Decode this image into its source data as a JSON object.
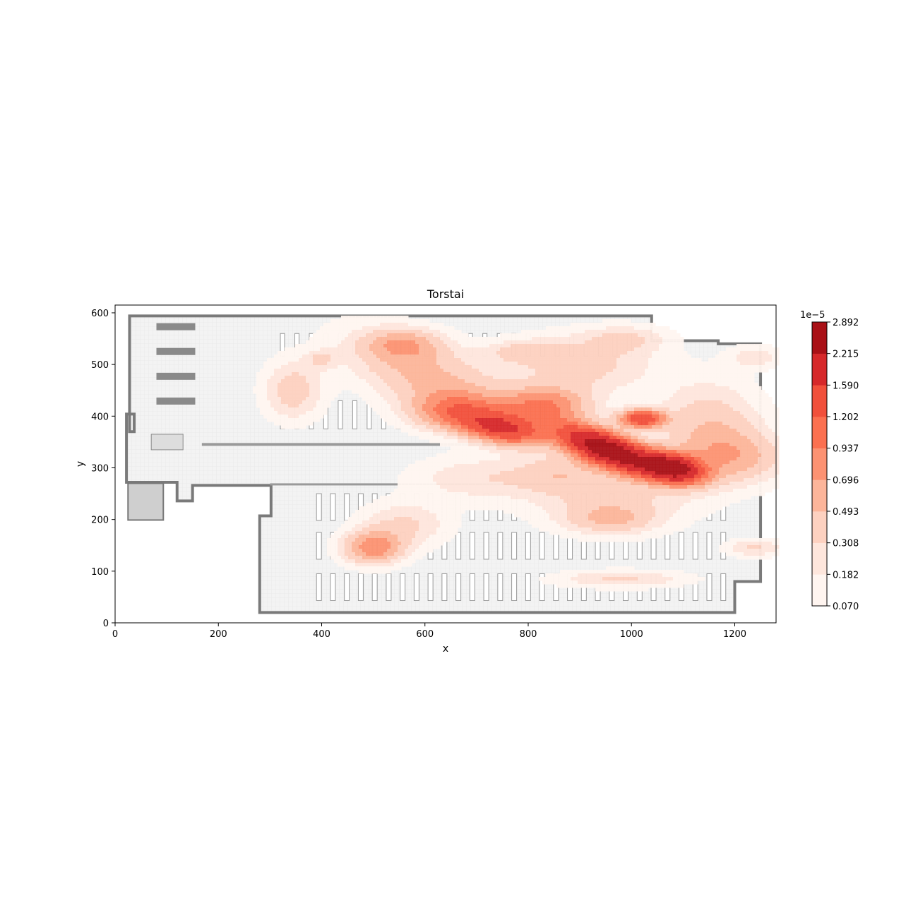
{
  "chart_data": {
    "type": "heatmap",
    "title": "Torstai",
    "xlabel": "x",
    "ylabel": "y",
    "xlim": [
      0,
      1280
    ],
    "ylim": [
      0,
      615
    ],
    "x_ticks": [
      0,
      200,
      400,
      600,
      800,
      1000,
      1200
    ],
    "y_ticks": [
      0,
      100,
      200,
      300,
      400,
      500,
      600
    ],
    "background": "grayscale store floor plan",
    "colormap": "Reds",
    "colorbar": {
      "exponent_label": "1e−5",
      "levels": [
        "0.070",
        "0.182",
        "0.308",
        "0.493",
        "0.696",
        "0.937",
        "1.202",
        "1.590",
        "2.215",
        "2.892"
      ],
      "colors": [
        "#fff5f0",
        "#fee6dc",
        "#fdd1c0",
        "#fcb59a",
        "#fc9272",
        "#fb7050",
        "#f1503b",
        "#d6282a",
        "#a91016"
      ]
    },
    "hotspots": [
      {
        "x": 955,
        "y": 335,
        "sx": 70,
        "sy": 22,
        "angle": -20,
        "w": 1.0
      },
      {
        "x": 1080,
        "y": 300,
        "sx": 40,
        "sy": 18,
        "angle": -10,
        "w": 0.85
      },
      {
        "x": 1020,
        "y": 395,
        "sx": 30,
        "sy": 12,
        "angle": 0,
        "w": 0.55
      },
      {
        "x": 750,
        "y": 375,
        "sx": 55,
        "sy": 20,
        "angle": -10,
        "w": 0.55
      },
      {
        "x": 660,
        "y": 410,
        "sx": 60,
        "sy": 25,
        "angle": 0,
        "w": 0.3
      },
      {
        "x": 830,
        "y": 420,
        "sx": 60,
        "sy": 25,
        "angle": 0,
        "w": 0.32
      },
      {
        "x": 600,
        "y": 480,
        "sx": 110,
        "sy": 45,
        "angle": -20,
        "w": 0.2
      },
      {
        "x": 560,
        "y": 540,
        "sx": 50,
        "sy": 20,
        "angle": 0,
        "w": 0.18
      },
      {
        "x": 500,
        "y": 145,
        "sx": 40,
        "sy": 22,
        "angle": 0,
        "w": 0.3
      },
      {
        "x": 560,
        "y": 190,
        "sx": 60,
        "sy": 30,
        "angle": 0,
        "w": 0.12
      },
      {
        "x": 345,
        "y": 450,
        "sx": 40,
        "sy": 40,
        "angle": 0,
        "w": 0.15
      },
      {
        "x": 400,
        "y": 510,
        "sx": 20,
        "sy": 12,
        "angle": 0,
        "w": 0.1
      },
      {
        "x": 900,
        "y": 500,
        "sx": 100,
        "sy": 40,
        "angle": 0,
        "w": 0.14
      },
      {
        "x": 1150,
        "y": 380,
        "sx": 70,
        "sy": 60,
        "angle": 0,
        "w": 0.16
      },
      {
        "x": 960,
        "y": 200,
        "sx": 60,
        "sy": 20,
        "angle": 0,
        "w": 0.14
      },
      {
        "x": 960,
        "y": 240,
        "sx": 110,
        "sy": 40,
        "angle": 0,
        "w": 0.12
      },
      {
        "x": 990,
        "y": 550,
        "sx": 55,
        "sy": 18,
        "angle": 0,
        "w": 0.1
      },
      {
        "x": 980,
        "y": 85,
        "sx": 90,
        "sy": 12,
        "angle": 0,
        "w": 0.12
      },
      {
        "x": 1240,
        "y": 145,
        "sx": 40,
        "sy": 12,
        "angle": 0,
        "w": 0.12
      },
      {
        "x": 1240,
        "y": 515,
        "sx": 35,
        "sy": 15,
        "angle": 0,
        "w": 0.1
      },
      {
        "x": 790,
        "y": 525,
        "sx": 50,
        "sy": 15,
        "angle": 0,
        "w": 0.1
      },
      {
        "x": 700,
        "y": 280,
        "sx": 90,
        "sy": 30,
        "angle": 0,
        "w": 0.1
      },
      {
        "x": 1200,
        "y": 320,
        "sx": 70,
        "sy": 35,
        "angle": 0,
        "w": 0.18
      },
      {
        "x": 860,
        "y": 290,
        "sx": 60,
        "sy": 25,
        "angle": 0,
        "w": 0.12
      }
    ]
  }
}
